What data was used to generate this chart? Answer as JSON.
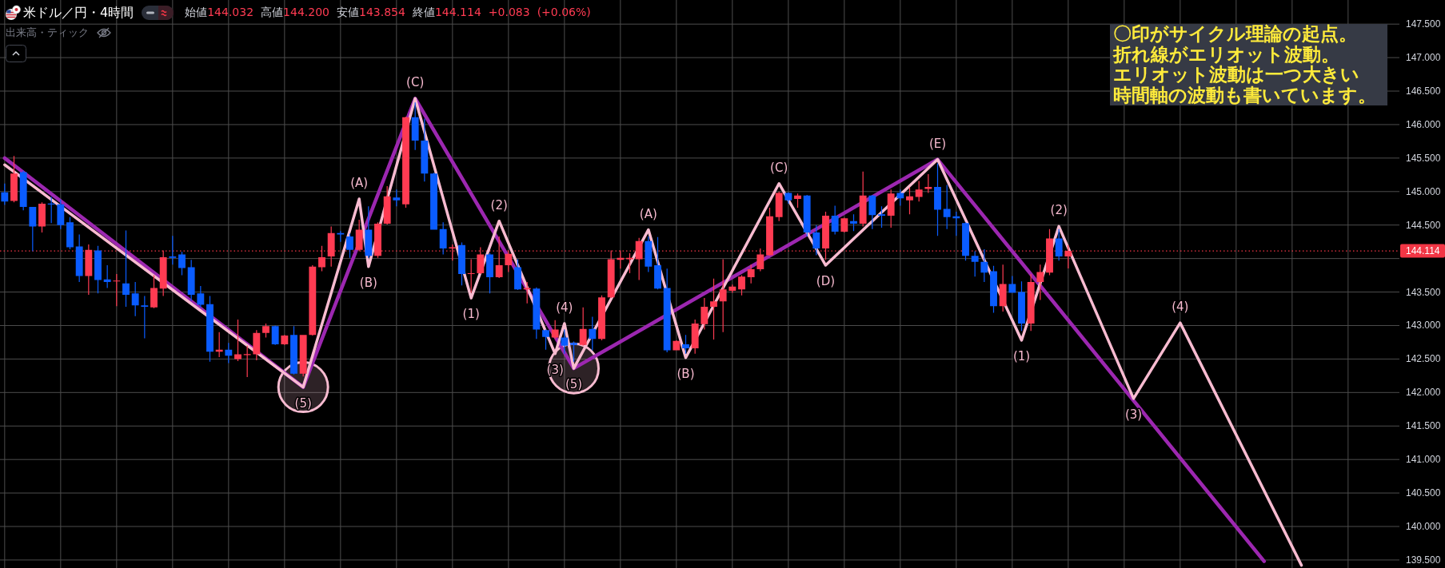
{
  "chart_data": {
    "type": "candlestick",
    "title": "米ドル／円・4時間",
    "subtitle": "始値144.032 高値144.200 安値143.854 終値144.114 +0.083 (+0.06%)",
    "categories": [
      null,
      null,
      null,
      null,
      null,
      null,
      null,
      null,
      null,
      null,
      null,
      null,
      null,
      null,
      null,
      null,
      null,
      null,
      null,
      null,
      null,
      null,
      null,
      null,
      null,
      null,
      null,
      null,
      null,
      null,
      null,
      null,
      null,
      null,
      null,
      null,
      null,
      null,
      null,
      null,
      null,
      null,
      null,
      null,
      null,
      null,
      null,
      null,
      null,
      null,
      null,
      null,
      null,
      null,
      null,
      null,
      null,
      null,
      null,
      null,
      null,
      null,
      null,
      null,
      null,
      null,
      null,
      null,
      null,
      null,
      null,
      null,
      null,
      null,
      null,
      null,
      null,
      null,
      null,
      null,
      null,
      null,
      null,
      null,
      null,
      null,
      null,
      null,
      null,
      null,
      null,
      null,
      null,
      null,
      null,
      null,
      null,
      null,
      null,
      null,
      null,
      null,
      null,
      null,
      null,
      null,
      null,
      null,
      null,
      null,
      null,
      null,
      null,
      null,
      null,
      null,
      null,
      null,
      null,
      null,
      null,
      null,
      null,
      null,
      null,
      null,
      null,
      null,
      null,
      null,
      null,
      null,
      null,
      null,
      null,
      null,
      null,
      null,
      null,
      null,
      null,
      null,
      null,
      null,
      null,
      null,
      null,
      null,
      null,
      null
    ],
    "ohlc": [
      [
        144.99,
        145.12,
        144.8,
        144.85
      ],
      [
        144.86,
        145.53,
        144.84,
        145.27
      ],
      [
        145.29,
        145.31,
        144.72,
        144.77
      ],
      [
        144.77,
        144.77,
        144.11,
        144.48
      ],
      [
        144.48,
        144.84,
        144.39,
        144.82
      ],
      [
        144.82,
        144.92,
        144.53,
        144.81
      ],
      [
        144.81,
        144.88,
        144.44,
        144.5
      ],
      [
        144.54,
        144.62,
        144.14,
        144.17
      ],
      [
        144.18,
        144.36,
        143.65,
        143.74
      ],
      [
        143.74,
        144.21,
        143.46,
        144.13
      ],
      [
        144.12,
        144.19,
        143.48,
        143.68
      ],
      [
        143.69,
        143.9,
        143.56,
        143.65
      ],
      [
        143.66,
        143.77,
        143.29,
        143.67
      ],
      [
        143.63,
        144.42,
        143.28,
        143.46
      ],
      [
        143.48,
        143.65,
        143.14,
        143.3
      ],
      [
        143.3,
        143.44,
        142.81,
        143.28
      ],
      [
        143.27,
        143.75,
        143.26,
        143.56
      ],
      [
        143.55,
        144.12,
        143.44,
        144.02
      ],
      [
        144.03,
        144.34,
        143.91,
        144.01
      ],
      [
        144.06,
        144.1,
        143.75,
        143.86
      ],
      [
        143.87,
        143.98,
        143.37,
        143.46
      ],
      [
        143.48,
        143.59,
        143.27,
        143.31
      ],
      [
        143.32,
        143.44,
        142.46,
        142.61
      ],
      [
        142.61,
        142.9,
        142.53,
        142.64
      ],
      [
        142.64,
        142.74,
        142.44,
        142.55
      ],
      [
        142.5,
        143.09,
        142.47,
        142.57
      ],
      [
        142.56,
        142.7,
        142.23,
        142.57
      ],
      [
        142.57,
        142.93,
        142.48,
        142.89
      ],
      [
        142.89,
        143.03,
        142.82,
        142.99
      ],
      [
        142.99,
        143.0,
        142.71,
        142.72
      ],
      [
        142.72,
        142.86,
        142.71,
        142.85
      ],
      [
        142.86,
        142.99,
        142.27,
        142.28
      ],
      [
        142.28,
        142.86,
        142.24,
        142.86
      ],
      [
        142.86,
        143.9,
        142.85,
        143.88
      ],
      [
        143.87,
        144.19,
        143.81,
        144.02
      ],
      [
        144.03,
        144.48,
        143.88,
        144.38
      ],
      [
        144.38,
        144.41,
        144.25,
        144.36
      ],
      [
        144.33,
        144.37,
        144.01,
        144.13
      ],
      [
        144.13,
        144.58,
        144.11,
        144.43
      ],
      [
        144.43,
        144.78,
        144.01,
        144.04
      ],
      [
        144.04,
        144.54,
        144.01,
        144.52
      ],
      [
        144.52,
        145.08,
        144.51,
        144.93
      ],
      [
        144.91,
        145.03,
        144.78,
        144.87
      ],
      [
        144.81,
        146.12,
        144.76,
        146.11
      ],
      [
        146.11,
        146.33,
        145.62,
        145.76
      ],
      [
        145.76,
        146.09,
        145.15,
        145.27
      ],
      [
        145.27,
        145.28,
        144.43,
        144.43
      ],
      [
        144.44,
        144.54,
        144.06,
        144.15
      ],
      [
        144.15,
        144.21,
        143.97,
        144.17
      ],
      [
        144.2,
        144.24,
        143.6,
        143.77
      ],
      [
        143.77,
        143.99,
        143.49,
        143.78
      ],
      [
        143.78,
        144.17,
        143.77,
        144.06
      ],
      [
        144.06,
        144.08,
        143.48,
        143.72
      ],
      [
        143.72,
        144.33,
        143.71,
        143.9
      ],
      [
        143.9,
        144.12,
        143.8,
        144.07
      ],
      [
        143.87,
        143.99,
        143.53,
        143.54
      ],
      [
        143.54,
        143.65,
        143.33,
        143.56
      ],
      [
        143.55,
        143.57,
        142.8,
        142.94
      ],
      [
        142.93,
        142.94,
        142.64,
        142.83
      ],
      [
        142.82,
        143.08,
        142.8,
        142.94
      ],
      [
        142.82,
        142.94,
        142.58,
        142.7
      ],
      [
        142.74,
        142.76,
        142.46,
        142.71
      ],
      [
        142.71,
        143.27,
        142.7,
        142.95
      ],
      [
        142.95,
        143.13,
        142.63,
        142.8
      ],
      [
        142.8,
        143.45,
        142.78,
        143.42
      ],
      [
        143.42,
        144.12,
        143.41,
        143.99
      ],
      [
        143.98,
        144.12,
        143.85,
        144.01
      ],
      [
        143.99,
        144.08,
        143.78,
        144.01
      ],
      [
        143.99,
        144.31,
        143.68,
        144.26
      ],
      [
        144.26,
        144.33,
        143.8,
        143.88
      ],
      [
        143.9,
        144.32,
        143.54,
        143.55
      ],
      [
        143.56,
        143.85,
        142.6,
        142.63
      ],
      [
        142.63,
        142.78,
        142.63,
        142.77
      ],
      [
        142.72,
        142.86,
        142.58,
        142.66
      ],
      [
        142.66,
        143.09,
        142.58,
        143.03
      ],
      [
        143.02,
        143.41,
        142.94,
        143.28
      ],
      [
        143.28,
        143.7,
        142.79,
        143.36
      ],
      [
        143.36,
        143.99,
        142.9,
        143.54
      ],
      [
        143.52,
        143.61,
        143.49,
        143.58
      ],
      [
        143.54,
        143.75,
        143.45,
        143.73
      ],
      [
        143.72,
        143.91,
        143.63,
        143.84
      ],
      [
        143.84,
        144.15,
        143.81,
        144.06
      ],
      [
        144.05,
        144.76,
        144.04,
        144.63
      ],
      [
        144.62,
        145.0,
        144.56,
        144.98
      ],
      [
        144.98,
        144.99,
        144.82,
        144.87
      ],
      [
        144.89,
        144.97,
        144.76,
        144.94
      ],
      [
        144.94,
        144.95,
        144.33,
        144.39
      ],
      [
        144.39,
        144.5,
        144.05,
        144.15
      ],
      [
        144.15,
        144.7,
        143.98,
        144.64
      ],
      [
        144.64,
        144.79,
        144.36,
        144.4
      ],
      [
        144.4,
        144.61,
        144.39,
        144.6
      ],
      [
        144.56,
        144.66,
        144.41,
        144.52
      ],
      [
        144.52,
        145.3,
        144.48,
        144.94
      ],
      [
        144.94,
        144.95,
        144.44,
        144.65
      ],
      [
        144.66,
        144.78,
        144.46,
        144.64
      ],
      [
        144.64,
        145.03,
        144.46,
        144.97
      ],
      [
        144.98,
        145.03,
        144.79,
        144.9
      ],
      [
        144.87,
        145.06,
        144.66,
        144.93
      ],
      [
        144.92,
        145.16,
        144.85,
        145.03
      ],
      [
        145.04,
        145.26,
        144.98,
        145.07
      ],
      [
        145.07,
        145.42,
        144.34,
        144.73
      ],
      [
        144.74,
        145.1,
        144.44,
        144.62
      ],
      [
        144.63,
        144.7,
        144.34,
        144.6
      ],
      [
        144.53,
        144.54,
        143.97,
        144.04
      ],
      [
        144.04,
        144.11,
        143.73,
        143.95
      ],
      [
        143.95,
        144.14,
        143.65,
        143.79
      ],
      [
        143.81,
        143.89,
        143.19,
        143.29
      ],
      [
        143.29,
        143.91,
        143.21,
        143.62
      ],
      [
        143.62,
        143.74,
        143.49,
        143.49
      ],
      [
        143.5,
        143.66,
        142.92,
        143.03
      ],
      [
        143.03,
        143.77,
        142.92,
        143.65
      ],
      [
        143.65,
        143.91,
        143.38,
        143.8
      ],
      [
        143.79,
        144.44,
        143.75,
        144.3
      ],
      [
        144.3,
        144.44,
        143.97,
        144.03
      ],
      [
        144.032,
        144.2,
        143.854,
        144.114
      ],
      null,
      null,
      null,
      null,
      null,
      null,
      null,
      null,
      null,
      null,
      null,
      null,
      null,
      null,
      null,
      null,
      null,
      null,
      null,
      null,
      null,
      null,
      null,
      null,
      null,
      null,
      null,
      null,
      null,
      null,
      null,
      null,
      null,
      null,
      null
    ],
    "colors": [
      "#0a5cff",
      "#ff3b52",
      "#0a5cff",
      "#0a5cff",
      "#ff3b52",
      "#0a5cff",
      "#0a5cff",
      "#0a5cff",
      "#0a5cff",
      "#ff3b52",
      "#0a5cff",
      "#0a5cff",
      "#ff3b52",
      "#0a5cff",
      "#0a5cff",
      "#0a5cff",
      "#ff3b52",
      "#ff3b52",
      "#0a5cff",
      "#0a5cff",
      "#0a5cff",
      "#0a5cff",
      "#0a5cff",
      "#ff3b52",
      "#0a5cff",
      "#ff3b52",
      "#ff3b52",
      "#ff3b52",
      "#ff3b52",
      "#0a5cff",
      "#ff3b52",
      "#0a5cff",
      "#ff3b52",
      "#ff3b52",
      "#ff3b52",
      "#ff3b52",
      "#0a5cff",
      "#0a5cff",
      "#ff3b52",
      "#0a5cff",
      "#ff3b52",
      "#ff3b52",
      "#0a5cff",
      "#ff3b52",
      "#0a5cff",
      "#0a5cff",
      "#0a5cff",
      "#0a5cff",
      "#ff3b52",
      "#0a5cff",
      "#ff3b52",
      "#ff3b52",
      "#0a5cff",
      "#ff3b52",
      "#ff3b52",
      "#0a5cff",
      "#ff3b52",
      "#0a5cff",
      "#0a5cff",
      "#ff3b52",
      "#0a5cff",
      "#0a5cff",
      "#ff3b52",
      "#0a5cff",
      "#ff3b52",
      "#ff3b52",
      "#ff3b52",
      "#ff3b52",
      "#ff3b52",
      "#0a5cff",
      "#0a5cff",
      "#0a5cff",
      "#ff3b52",
      "#0a5cff",
      "#ff3b52",
      "#ff3b52",
      "#ff3b52",
      "#ff3b52",
      "#ff3b52",
      "#ff3b52",
      "#ff3b52",
      "#ff3b52",
      "#ff3b52",
      "#ff3b52",
      "#0a5cff",
      "#ff3b52",
      "#0a5cff",
      "#0a5cff",
      "#ff3b52",
      "#0a5cff",
      "#ff3b52",
      "#0a5cff",
      "#ff3b52",
      "#0a5cff",
      "#0a5cff",
      "#ff3b52",
      "#0a5cff",
      "#ff3b52",
      "#ff3b52",
      "#ff3b52",
      "#0a5cff",
      "#0a5cff",
      "#0a5cff",
      "#0a5cff",
      "#0a5cff",
      "#0a5cff",
      "#0a5cff",
      "#ff3b52",
      "#0a5cff",
      "#0a5cff",
      "#ff3b52",
      "#ff3b52",
      "#ff3b52",
      "#0a5cff",
      "#ff3b52",
      null,
      null,
      null,
      null,
      null,
      null,
      null,
      null,
      null,
      null,
      null,
      null,
      null,
      null,
      null,
      null,
      null,
      null,
      null,
      null,
      null,
      null,
      null,
      null,
      null,
      null,
      null,
      null,
      null,
      null,
      null,
      null,
      null,
      null,
      null
    ],
    "series": [
      {
        "type": "line",
        "color": "#9c27b0",
        "values": [
          145.5,
          null,
          null,
          null,
          null,
          null,
          null,
          null,
          null,
          null,
          null,
          null,
          null,
          null,
          null,
          null,
          null,
          null,
          null,
          null,
          null,
          null,
          null,
          null,
          null,
          null,
          null,
          null,
          null,
          null,
          null,
          null,
          142.08,
          null,
          null,
          null,
          null,
          null,
          null,
          null,
          null,
          null,
          null,
          null,
          146.39,
          null,
          null,
          null,
          null,
          null,
          null,
          null,
          null,
          null,
          null,
          null,
          null,
          null,
          null,
          null,
          null,
          142.36,
          null,
          null,
          null,
          null,
          null,
          null,
          null,
          null,
          null,
          null,
          null,
          null,
          null,
          null,
          null,
          null,
          null,
          null,
          null,
          null,
          null,
          null,
          null,
          null,
          null,
          null,
          null,
          null,
          null,
          null,
          null,
          null,
          null,
          null,
          null,
          null,
          null,
          null,
          145.48,
          null,
          null,
          null,
          null,
          null,
          null,
          null,
          null,
          null,
          null,
          null,
          null,
          null,
          null,
          null,
          null,
          null,
          null,
          null,
          null,
          null,
          null,
          null,
          null,
          null,
          null,
          null,
          null,
          null,
          null,
          null,
          null,
          null,
          null,
          139.48,
          null,
          null,
          null,
          null,
          null,
          null,
          null,
          null,
          null,
          null,
          null,
          null,
          null,
          null
        ]
      },
      {
        "type": "line",
        "color": "#f8bbd0",
        "values": [
          145.4,
          null,
          null,
          null,
          null,
          null,
          null,
          null,
          null,
          null,
          null,
          null,
          null,
          null,
          null,
          null,
          null,
          null,
          null,
          null,
          null,
          null,
          null,
          null,
          null,
          null,
          null,
          null,
          null,
          null,
          null,
          null,
          142.08,
          null,
          null,
          null,
          null,
          null,
          144.89,
          143.88,
          null,
          null,
          null,
          null,
          146.39,
          null,
          null,
          null,
          null,
          null,
          143.41,
          null,
          null,
          144.56,
          null,
          null,
          null,
          null,
          null,
          142.58,
          143.03,
          142.36,
          null,
          null,
          null,
          null,
          null,
          null,
          null,
          144.43,
          null,
          null,
          null,
          142.52,
          null,
          null,
          null,
          null,
          null,
          null,
          null,
          null,
          null,
          145.12,
          null,
          null,
          null,
          null,
          143.9,
          null,
          null,
          null,
          null,
          null,
          null,
          null,
          null,
          null,
          null,
          null,
          145.48,
          null,
          null,
          null,
          null,
          null,
          null,
          null,
          null,
          142.78,
          null,
          null,
          null,
          144.48,
          null,
          null,
          null,
          null,
          null,
          null,
          null,
          141.91,
          null,
          null,
          null,
          null,
          143.04,
          null,
          null,
          null,
          null,
          null,
          null,
          null,
          null,
          null,
          null,
          null,
          null,
          139.42,
          null,
          null,
          null,
          null,
          null,
          null,
          null,
          null,
          null,
          null
        ]
      }
    ],
    "ylim": [
      139.38,
      147.86
    ],
    "yticks": [
      {
        "value": 139.5,
        "label": "139.500"
      },
      {
        "value": 140,
        "label": "140.000"
      },
      {
        "value": 140.5,
        "label": "140.500"
      },
      {
        "value": 141,
        "label": "141.000"
      },
      {
        "value": 141.5,
        "label": "141.500"
      },
      {
        "value": 142,
        "label": "142.000"
      },
      {
        "value": 142.5,
        "label": "142.500"
      },
      {
        "value": 143,
        "label": "143.000"
      },
      {
        "value": 143.5,
        "label": "143.500"
      },
      {
        "value": 144,
        "label": null
      },
      {
        "value": 144.5,
        "label": "144.500"
      },
      {
        "value": 145,
        "label": "145.000"
      },
      {
        "value": 145.5,
        "label": "145.500"
      },
      {
        "value": 146,
        "label": "146.000"
      },
      {
        "value": 146.5,
        "label": "146.500"
      },
      {
        "value": 147,
        "label": "147.000"
      },
      {
        "value": 147.5,
        "label": "147.500"
      }
    ],
    "grid": true,
    "tick_labels": "y",
    "ref_lines": [
      {
        "axis": "y",
        "value": 144.114,
        "label": "144.114",
        "color": "#f23645",
        "line_style": "dotted"
      }
    ],
    "annotations": [
      "出来高・ティック",
      "〇印がサイクル理論の起点。折れ線がエリオット波動。エリオット波動は一つ大きい時間軸の波動も書いています。",
      {
        "text": "(5)",
        "y": 142.08
      },
      {
        "text": "(A)",
        "y": 144.89
      },
      {
        "text": "(B)",
        "y": 143.88
      },
      {
        "text": "(C)",
        "y": 146.39
      },
      {
        "text": "(1)",
        "y": 143.41
      },
      {
        "text": "(2)",
        "y": 144.56
      },
      {
        "text": "(3)",
        "y": 142.58
      },
      {
        "text": "(4)",
        "y": 143.03
      },
      {
        "text": "(5)",
        "y": 142.36
      },
      {
        "text": "(A)",
        "y": 144.43
      },
      {
        "text": "(B)",
        "y": 142.52
      },
      {
        "text": "(C)",
        "y": 145.12
      },
      {
        "text": "(D)",
        "y": 143.9
      },
      {
        "text": "(E)",
        "y": 145.48
      },
      {
        "text": "(1)",
        "y": 142.78
      },
      {
        "text": "(2)",
        "y": 144.48
      },
      {
        "text": "(3)",
        "y": 141.91
      },
      {
        "text": "(4)",
        "y": 143.04
      }
    ]
  }
}
